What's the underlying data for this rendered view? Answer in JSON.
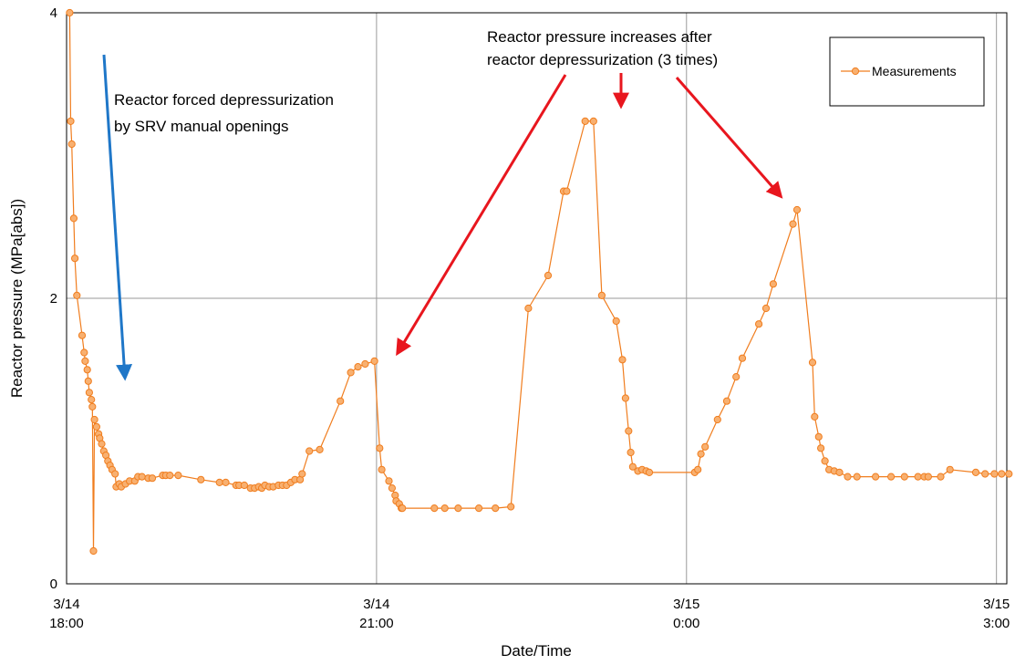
{
  "chart_data": {
    "type": "line",
    "xlabel": "Date/Time",
    "ylabel": "Reactor pressure (MPa[abs])",
    "ylim": [
      0,
      4
    ],
    "xlim_hours": [
      0,
      9.1
    ],
    "x_ticks": [
      {
        "hour": 0,
        "line1": "3/14",
        "line2": "18:00"
      },
      {
        "hour": 3,
        "line1": "3/14",
        "line2": "21:00"
      },
      {
        "hour": 6,
        "line1": "3/15",
        "line2": "0:00"
      },
      {
        "hour": 9,
        "line1": "3/15",
        "line2": "3:00"
      }
    ],
    "y_ticks": [
      0,
      2,
      4
    ],
    "grid": true,
    "legend_position": "top-right",
    "colors": {
      "series": "#f07d1e",
      "marker_fill": "#f8b070",
      "blue_arrow": "#1f77c8",
      "red_arrow": "#e8161e"
    },
    "series": [
      {
        "name": "Measurements",
        "x_unit": "hours after 3/14 18:00",
        "points": [
          [
            0.03,
            4.0
          ],
          [
            0.04,
            3.24
          ],
          [
            0.05,
            3.08
          ],
          [
            0.07,
            2.56
          ],
          [
            0.08,
            2.28
          ],
          [
            0.1,
            2.02
          ],
          [
            0.15,
            1.74
          ],
          [
            0.17,
            1.62
          ],
          [
            0.18,
            1.56
          ],
          [
            0.2,
            1.5
          ],
          [
            0.21,
            1.42
          ],
          [
            0.22,
            1.34
          ],
          [
            0.24,
            1.29
          ],
          [
            0.25,
            1.24
          ],
          [
            0.26,
            0.23
          ],
          [
            0.27,
            1.15
          ],
          [
            0.29,
            1.1
          ],
          [
            0.31,
            1.05
          ],
          [
            0.32,
            1.02
          ],
          [
            0.34,
            0.98
          ],
          [
            0.36,
            0.93
          ],
          [
            0.38,
            0.9
          ],
          [
            0.4,
            0.86
          ],
          [
            0.42,
            0.83
          ],
          [
            0.44,
            0.8
          ],
          [
            0.47,
            0.77
          ],
          [
            0.48,
            0.68
          ],
          [
            0.51,
            0.7
          ],
          [
            0.53,
            0.68
          ],
          [
            0.57,
            0.7
          ],
          [
            0.61,
            0.72
          ],
          [
            0.66,
            0.72
          ],
          [
            0.69,
            0.75
          ],
          [
            0.73,
            0.75
          ],
          [
            0.79,
            0.74
          ],
          [
            0.83,
            0.74
          ],
          [
            0.93,
            0.76
          ],
          [
            0.96,
            0.76
          ],
          [
            1.0,
            0.76
          ],
          [
            1.08,
            0.76
          ],
          [
            1.3,
            0.73
          ],
          [
            1.48,
            0.71
          ],
          [
            1.54,
            0.71
          ],
          [
            1.64,
            0.69
          ],
          [
            1.67,
            0.69
          ],
          [
            1.72,
            0.69
          ],
          [
            1.78,
            0.67
          ],
          [
            1.82,
            0.67
          ],
          [
            1.86,
            0.68
          ],
          [
            1.89,
            0.67
          ],
          [
            1.92,
            0.69
          ],
          [
            1.96,
            0.68
          ],
          [
            2.0,
            0.68
          ],
          [
            2.05,
            0.69
          ],
          [
            2.09,
            0.69
          ],
          [
            2.13,
            0.69
          ],
          [
            2.17,
            0.71
          ],
          [
            2.21,
            0.73
          ],
          [
            2.26,
            0.73
          ],
          [
            2.28,
            0.77
          ],
          [
            2.35,
            0.93
          ],
          [
            2.45,
            0.94
          ],
          [
            2.65,
            1.28
          ],
          [
            2.75,
            1.48
          ],
          [
            2.82,
            1.52
          ],
          [
            2.89,
            1.54
          ],
          [
            2.98,
            1.56
          ],
          [
            3.03,
            0.95
          ],
          [
            3.05,
            0.8
          ],
          [
            3.12,
            0.72
          ],
          [
            3.15,
            0.67
          ],
          [
            3.18,
            0.62
          ],
          [
            3.19,
            0.58
          ],
          [
            3.22,
            0.56
          ],
          [
            3.24,
            0.53
          ],
          [
            3.25,
            0.53
          ],
          [
            3.56,
            0.53
          ],
          [
            3.66,
            0.53
          ],
          [
            3.79,
            0.53
          ],
          [
            3.99,
            0.53
          ],
          [
            4.15,
            0.53
          ],
          [
            4.3,
            0.54
          ],
          [
            4.47,
            1.93
          ],
          [
            4.66,
            2.16
          ],
          [
            4.81,
            2.75
          ],
          [
            4.84,
            2.75
          ],
          [
            5.02,
            3.24
          ],
          [
            5.1,
            3.24
          ],
          [
            5.18,
            2.02
          ],
          [
            5.32,
            1.84
          ],
          [
            5.38,
            1.57
          ],
          [
            5.41,
            1.3
          ],
          [
            5.44,
            1.07
          ],
          [
            5.46,
            0.92
          ],
          [
            5.48,
            0.82
          ],
          [
            5.53,
            0.79
          ],
          [
            5.57,
            0.8
          ],
          [
            5.61,
            0.79
          ],
          [
            5.64,
            0.78
          ],
          [
            6.08,
            0.78
          ],
          [
            6.11,
            0.8
          ],
          [
            6.14,
            0.91
          ],
          [
            6.18,
            0.96
          ],
          [
            6.3,
            1.15
          ],
          [
            6.39,
            1.28
          ],
          [
            6.48,
            1.45
          ],
          [
            6.54,
            1.58
          ],
          [
            6.7,
            1.82
          ],
          [
            6.77,
            1.93
          ],
          [
            6.84,
            2.1
          ],
          [
            7.03,
            2.52
          ],
          [
            7.07,
            2.62
          ],
          [
            7.22,
            1.55
          ],
          [
            7.24,
            1.17
          ],
          [
            7.28,
            1.03
          ],
          [
            7.3,
            0.95
          ],
          [
            7.34,
            0.86
          ],
          [
            7.38,
            0.8
          ],
          [
            7.43,
            0.79
          ],
          [
            7.48,
            0.78
          ],
          [
            7.56,
            0.75
          ],
          [
            7.65,
            0.75
          ],
          [
            7.83,
            0.75
          ],
          [
            7.98,
            0.75
          ],
          [
            8.11,
            0.75
          ],
          [
            8.24,
            0.75
          ],
          [
            8.3,
            0.75
          ],
          [
            8.34,
            0.75
          ],
          [
            8.46,
            0.75
          ],
          [
            8.55,
            0.8
          ],
          [
            8.8,
            0.78
          ],
          [
            8.89,
            0.77
          ],
          [
            8.98,
            0.77
          ],
          [
            9.05,
            0.77
          ],
          [
            9.12,
            0.77
          ]
        ]
      }
    ],
    "annotations": [
      {
        "lines": [
          "Reactor forced depressurization",
          "by SRV manual openings"
        ]
      },
      {
        "lines": [
          "Reactor pressure increases after",
          "reactor depressurization (3 times)"
        ]
      }
    ]
  }
}
